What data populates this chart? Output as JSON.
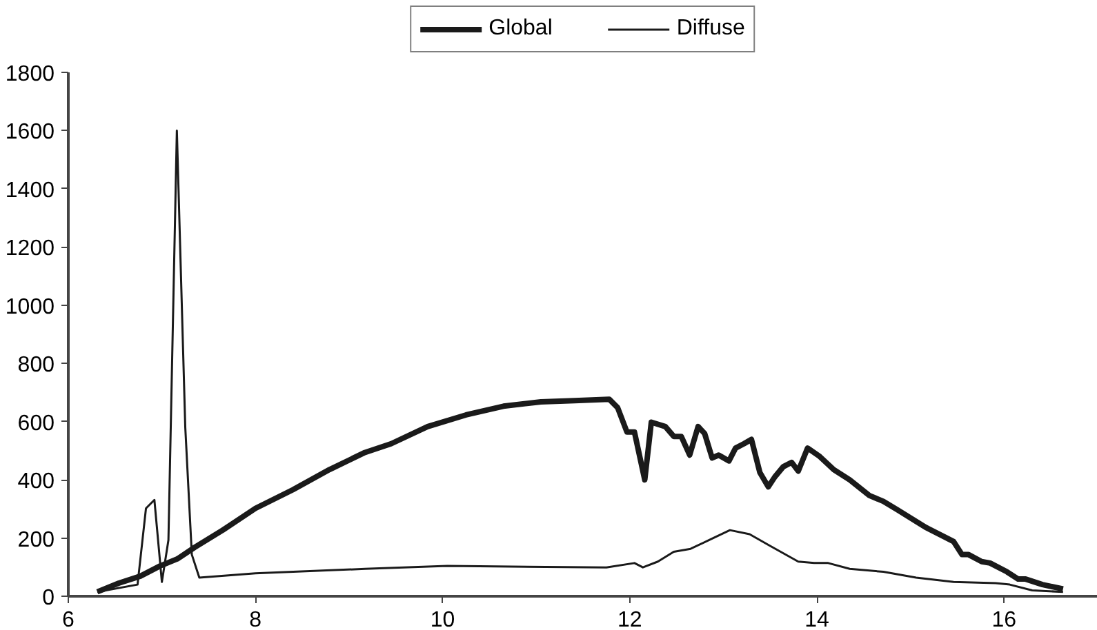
{
  "chart_data": {
    "type": "line",
    "xlim": [
      6,
      17
    ],
    "ylim": [
      0,
      1800
    ],
    "xticks": [
      6,
      8,
      10,
      12,
      14,
      16
    ],
    "yticks": [
      0,
      200,
      400,
      600,
      800,
      1000,
      1200,
      1400,
      1600,
      1800
    ],
    "grid": false,
    "legend": "top",
    "marker": "none",
    "line_style": "solid",
    "series": [
      {
        "name": "Global",
        "color": "#1a1a1a",
        "x": [
          6.31,
          6.54,
          6.77,
          6.98,
          7.17,
          7.35,
          7.65,
          8.0,
          8.4,
          8.79,
          9.17,
          9.45,
          9.84,
          10.25,
          10.65,
          11.05,
          11.41,
          11.78,
          11.87,
          11.97,
          12.05,
          12.16,
          12.23,
          12.38,
          12.47,
          12.55,
          12.64,
          12.73,
          12.8,
          12.88,
          12.95,
          13.06,
          13.13,
          13.22,
          13.3,
          13.39,
          13.48,
          13.55,
          13.64,
          13.73,
          13.8,
          13.9,
          14.03,
          14.18,
          14.35,
          14.56,
          14.71,
          14.86,
          15.16,
          15.46,
          15.55,
          15.62,
          15.76,
          15.85,
          16.03,
          16.15,
          16.23,
          16.41,
          16.63
        ],
        "values": [
          15,
          45,
          69,
          104,
          129,
          168,
          227,
          302,
          366,
          435,
          494,
          524,
          583,
          623,
          653,
          668,
          672,
          677,
          648,
          564,
          564,
          400,
          598,
          583,
          549,
          549,
          485,
          583,
          559,
          475,
          485,
          465,
          509,
          524,
          539,
          425,
          376,
          410,
          445,
          460,
          430,
          509,
          480,
          435,
          400,
          346,
          326,
          297,
          237,
          188,
          143,
          143,
          119,
          114,
          84,
          59,
          59,
          40,
          25
        ]
      },
      {
        "name": "Diffuse",
        "color": "#1a1a1a",
        "x": [
          6.31,
          6.74,
          6.83,
          6.92,
          7.0,
          7.07,
          7.16,
          7.25,
          7.32,
          7.4,
          8.0,
          9.17,
          10.05,
          11.75,
          12.05,
          12.14,
          12.3,
          12.47,
          12.65,
          12.88,
          13.07,
          13.28,
          13.5,
          13.8,
          13.97,
          14.12,
          14.35,
          14.71,
          15.06,
          15.46,
          15.91,
          16.06,
          16.3,
          16.63
        ],
        "values": [
          15,
          40,
          302,
          331,
          49,
          193,
          1600,
          580,
          143,
          64,
          79,
          94,
          104,
          99,
          114,
          99,
          119,
          153,
          163,
          198,
          227,
          213,
          173,
          119,
          114,
          114,
          94,
          84,
          64,
          49,
          45,
          40,
          20,
          15
        ]
      }
    ]
  }
}
